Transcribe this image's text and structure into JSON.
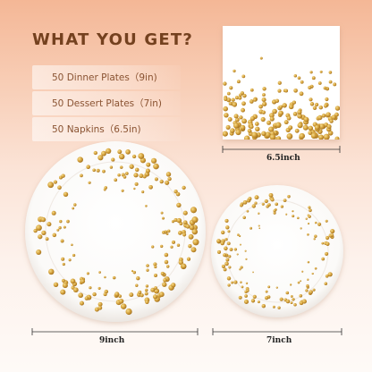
{
  "heading": "WHAT YOU GET?",
  "items": [
    {
      "label": "50 Dinner Plates（9in)"
    },
    {
      "label": "50 Dessert Plates（7in)"
    },
    {
      "label": "50 Napkins（6.5in)"
    }
  ],
  "dimensions": {
    "napkin": "6.5inch",
    "dinner_plate": "9inch",
    "dessert_plate": "7inch"
  },
  "colors": {
    "heading": "#74411f",
    "item_text": "#8a5332",
    "gold": "#c9962c",
    "background_top": "#f4b796"
  }
}
